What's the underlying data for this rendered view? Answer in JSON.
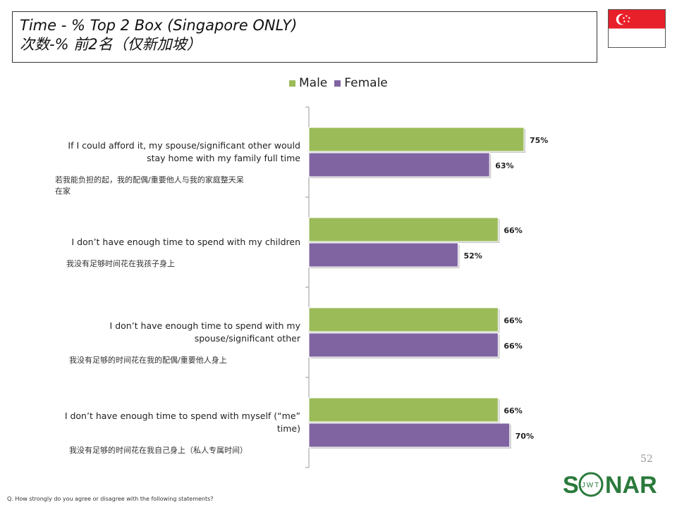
{
  "title": {
    "en": "Time - % Top 2 Box (Singapore ONLY)",
    "cn": "次数-% 前2名（仅新加坡）"
  },
  "flag": {
    "icon": "singapore-flag-icon",
    "colors": {
      "red": "#e8202a",
      "white": "#ffffff"
    }
  },
  "legend": {
    "male": "Male",
    "female": "Female"
  },
  "colors": {
    "male": "#9bbb59",
    "female": "#8064a2",
    "axis": "#999999"
  },
  "chart_data": {
    "type": "bar",
    "orientation": "horizontal",
    "categories": [
      {
        "en": [
          "If I could afford it, my spouse/significant other would",
          "stay home with my family full time"
        ],
        "cn": [
          "若我能负担的起，我的配偶/重要他人与我的家庭整天呆",
          "在家"
        ]
      },
      {
        "en": [
          "I don’t have enough time to spend with my children"
        ],
        "cn": [
          "我没有足够时间花在我孩子身上"
        ]
      },
      {
        "en": [
          "I don’t have enough time to spend with my",
          "spouse/significant other"
        ],
        "cn": [
          "我没有足够的时间花在我的配偶/重要他人身上"
        ]
      },
      {
        "en": [
          "I don’t have enough time to spend with myself (“me”",
          "time)"
        ],
        "cn": [
          "我没有足够的时间花在我自己身上（私人专属时间）"
        ]
      }
    ],
    "series": [
      {
        "name": "Male",
        "values": [
          75,
          66,
          66,
          66
        ],
        "labels": [
          "75%",
          "66%",
          "66%",
          "66%"
        ]
      },
      {
        "name": "Female",
        "values": [
          63,
          52,
          66,
          70
        ],
        "labels": [
          "63%",
          "52%",
          "66%",
          "70%"
        ]
      }
    ],
    "unit": "%",
    "grid": false,
    "legend_position": "top"
  },
  "page_number": "52",
  "footnote": "Q. How strongly do you agree or disagree with the following statements?",
  "logo": {
    "text_left": "S",
    "text_right": "NAR",
    "ring_text": "JWT",
    "color": "#2a7a3c"
  }
}
